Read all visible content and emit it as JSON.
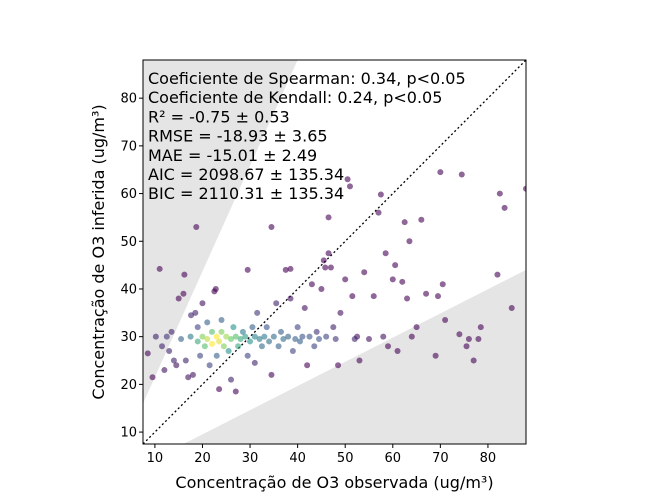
{
  "chart_data": {
    "type": "scatter",
    "title": "",
    "xlabel": "Concentração de O3 observada (ug/m³)",
    "ylabel": "Concentração de O3 inferida (ug/m³)",
    "xlim": [
      7.5,
      88
    ],
    "ylim": [
      7.5,
      88
    ],
    "xticks": [
      10,
      20,
      30,
      40,
      50,
      60,
      70,
      80
    ],
    "yticks": [
      10,
      20,
      30,
      40,
      50,
      60,
      70,
      80
    ],
    "grid": false,
    "identity_line": {
      "style": "dotted",
      "color": "#000000"
    },
    "shaded_regions": [
      {
        "name": "upper-wedge",
        "polygon": [
          [
            7.5,
            16
          ],
          [
            7.5,
            88
          ],
          [
            40,
            88
          ]
        ],
        "color": "#e5e5e5"
      },
      {
        "name": "lower-wedge",
        "polygon": [
          [
            16,
            7.5
          ],
          [
            88,
            7.5
          ],
          [
            88,
            44
          ]
        ],
        "color": "#e5e5e5"
      }
    ],
    "colormap": "viridis (point density)",
    "annotations": [
      "Coeficiente de Spearman: 0.34, p<0.05",
      "Coeficiente de Kendall: 0.24, p<0.05",
      "R² = -0.75 ± 0.53",
      "RMSE = -18.93 ± 3.65",
      "MAE = -15.01 ± 2.49",
      "AIC = 2098.67 ± 135.34",
      "BIC = 2110.31 ± 135.34"
    ],
    "points": [
      [
        8.5,
        26.5,
        0
      ],
      [
        9.5,
        21.5,
        0
      ],
      [
        10.2,
        30,
        0.1
      ],
      [
        11,
        44.2,
        0
      ],
      [
        11.5,
        28,
        0.1
      ],
      [
        12,
        23,
        0.05
      ],
      [
        12.5,
        30,
        0.15
      ],
      [
        13,
        27,
        0.1
      ],
      [
        13.5,
        31,
        0.1
      ],
      [
        14,
        25,
        0.1
      ],
      [
        14.5,
        24,
        0.05
      ],
      [
        15,
        38,
        0
      ],
      [
        15.5,
        29.5,
        0.3
      ],
      [
        16,
        39,
        0
      ],
      [
        16.2,
        43,
        0
      ],
      [
        16.5,
        25,
        0.1
      ],
      [
        17,
        21.5,
        0.05
      ],
      [
        17.5,
        30,
        0.4
      ],
      [
        17.6,
        34.5,
        0.1
      ],
      [
        18,
        22,
        0.05
      ],
      [
        18.5,
        35,
        0.1
      ],
      [
        18.7,
        53,
        0
      ],
      [
        19,
        29,
        0.6
      ],
      [
        19,
        32,
        0.2
      ],
      [
        19.5,
        26,
        0.2
      ],
      [
        20,
        30,
        0.8
      ],
      [
        20,
        37,
        0.05
      ],
      [
        20.5,
        28,
        0.7
      ],
      [
        21,
        29.5,
        0.9
      ],
      [
        21,
        33,
        0.3
      ],
      [
        21.5,
        24,
        0.2
      ],
      [
        22,
        28.5,
        1
      ],
      [
        22,
        31,
        0.7
      ],
      [
        22.5,
        39.5,
        0
      ],
      [
        22.8,
        40,
        0
      ],
      [
        23,
        30,
        1
      ],
      [
        23,
        26,
        0.3
      ],
      [
        23.5,
        29,
        0.95
      ],
      [
        23.5,
        19,
        0
      ],
      [
        24,
        31,
        0.8
      ],
      [
        24,
        33.5,
        0.3
      ],
      [
        24.5,
        28,
        0.8
      ],
      [
        25,
        30,
        0.85
      ],
      [
        25.5,
        27,
        0.5
      ],
      [
        26,
        29.5,
        0.75
      ],
      [
        26,
        21,
        0.1
      ],
      [
        26.5,
        32,
        0.5
      ],
      [
        27,
        30,
        0.7
      ],
      [
        27,
        18.5,
        0
      ],
      [
        27.5,
        28,
        0.6
      ],
      [
        28,
        29.5,
        0.6
      ],
      [
        28.5,
        31,
        0.4
      ],
      [
        29,
        30,
        0.55
      ],
      [
        29.5,
        44,
        0
      ],
      [
        29.5,
        26,
        0.2
      ],
      [
        30,
        29,
        0.5
      ],
      [
        30.5,
        32,
        0.3
      ],
      [
        31,
        30,
        0.45
      ],
      [
        31,
        24.5,
        0.1
      ],
      [
        31.5,
        35,
        0.15
      ],
      [
        32,
        29.5,
        0.4
      ],
      [
        32.5,
        28,
        0.35
      ],
      [
        33,
        30,
        0.4
      ],
      [
        33.5,
        32,
        0.25
      ],
      [
        34,
        29,
        0.35
      ],
      [
        34.5,
        53,
        0
      ],
      [
        34.5,
        22,
        0
      ],
      [
        35,
        30,
        0.35
      ],
      [
        35.5,
        37,
        0.1
      ],
      [
        36,
        28,
        0.3
      ],
      [
        36.5,
        31,
        0.3
      ],
      [
        37,
        29.5,
        0.35
      ],
      [
        37.5,
        44,
        0
      ],
      [
        38,
        30,
        0.3
      ],
      [
        38.5,
        44.2,
        0
      ],
      [
        38.5,
        38,
        0.05
      ],
      [
        39,
        27,
        0.2
      ],
      [
        39.5,
        29.5,
        0.3
      ],
      [
        40,
        32,
        0.2
      ],
      [
        40.5,
        29,
        0.3
      ],
      [
        41,
        30,
        0.25
      ],
      [
        41.5,
        36,
        0.05
      ],
      [
        42,
        24,
        0
      ],
      [
        42.5,
        30,
        0.25
      ],
      [
        43,
        41,
        0
      ],
      [
        43.5,
        28,
        0.2
      ],
      [
        44,
        31,
        0.15
      ],
      [
        44.5,
        29.5,
        0.25
      ],
      [
        45,
        40,
        0
      ],
      [
        45.5,
        46,
        0
      ],
      [
        45.8,
        44.5,
        0
      ],
      [
        46,
        30,
        0.2
      ],
      [
        46.5,
        55,
        0
      ],
      [
        46.5,
        47.5,
        0
      ],
      [
        47,
        44.5,
        0
      ],
      [
        47.5,
        32,
        0.1
      ],
      [
        48,
        29.5,
        0.15
      ],
      [
        48.5,
        24,
        0
      ],
      [
        49,
        35,
        0.05
      ],
      [
        50,
        42,
        0
      ],
      [
        50.5,
        63,
        0
      ],
      [
        51,
        61.5,
        0
      ],
      [
        51.5,
        38.5,
        0
      ],
      [
        52,
        29.5,
        0.1
      ],
      [
        52.5,
        30,
        0.05
      ],
      [
        53,
        25,
        0
      ],
      [
        54,
        43.5,
        0
      ],
      [
        55,
        29.5,
        0.05
      ],
      [
        56,
        38.5,
        0
      ],
      [
        57,
        56,
        0
      ],
      [
        57.5,
        59.8,
        0
      ],
      [
        58,
        30,
        0.05
      ],
      [
        58.5,
        47.5,
        0
      ],
      [
        59,
        28,
        0
      ],
      [
        60,
        42,
        0
      ],
      [
        60.5,
        45,
        0
      ],
      [
        61,
        27,
        0
      ],
      [
        62,
        41.5,
        0
      ],
      [
        62.5,
        54,
        0
      ],
      [
        63,
        38,
        0
      ],
      [
        63.5,
        50,
        0
      ],
      [
        64,
        30,
        0
      ],
      [
        65,
        32,
        0
      ],
      [
        66,
        54.5,
        0
      ],
      [
        67,
        39,
        0
      ],
      [
        69,
        26,
        0
      ],
      [
        69.5,
        38.5,
        0
      ],
      [
        70,
        64.5,
        0
      ],
      [
        70.5,
        41,
        0
      ],
      [
        71,
        33.5,
        0
      ],
      [
        74,
        30.5,
        0
      ],
      [
        74.5,
        64,
        0
      ],
      [
        75.5,
        28,
        0
      ],
      [
        76,
        29.5,
        0
      ],
      [
        77,
        25,
        0
      ],
      [
        78,
        29.5,
        0
      ],
      [
        78.5,
        32,
        0
      ],
      [
        82,
        43,
        0
      ],
      [
        82.5,
        60,
        0
      ],
      [
        83.5,
        57,
        0
      ],
      [
        85,
        36,
        0
      ],
      [
        88,
        61,
        0
      ]
    ]
  }
}
